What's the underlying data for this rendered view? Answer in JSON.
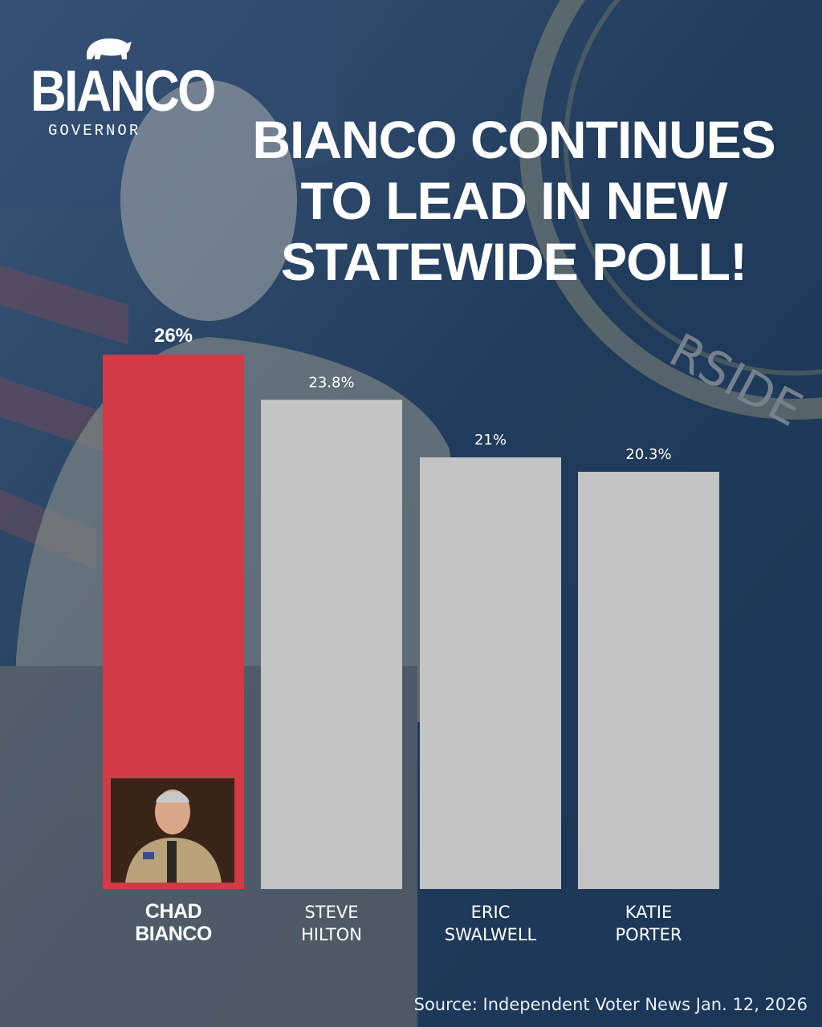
{
  "brand": {
    "name": "BIANCO",
    "subtitle": "GOVERNOR"
  },
  "headline": {
    "line1": "BIANCO CONTINUES",
    "line2": "TO LEAD IN NEW",
    "line3": "STATEWIDE POLL!"
  },
  "source": "Source: Independent Voter News Jan. 12, 2026",
  "colors": {
    "highlight": "#d23a45",
    "bar": "#c4c4c4",
    "background": "#24405f"
  },
  "chart_data": {
    "type": "bar",
    "title": "BIANCO CONTINUES TO LEAD IN NEW STATEWIDE POLL!",
    "categories": [
      [
        "CHAD",
        "BIANCO"
      ],
      [
        "STEVE",
        "HILTON"
      ],
      [
        "ERIC",
        "SWALWELL"
      ],
      [
        "KATIE",
        "PORTER"
      ]
    ],
    "values": [
      26,
      23.8,
      21,
      20.3
    ],
    "value_labels": [
      "26%",
      "23.8%",
      "21%",
      "20.3%"
    ],
    "highlight_index": 0,
    "ylim": [
      0,
      26
    ],
    "grid": false,
    "legend": "none"
  }
}
